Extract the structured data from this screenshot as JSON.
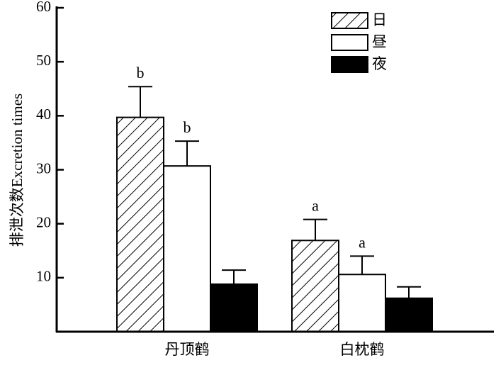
{
  "chart_data": {
    "type": "bar",
    "ylabel": "排泄次数Excretion times",
    "ylim": [
      0,
      60
    ],
    "yticks": [
      10,
      20,
      30,
      40,
      50,
      60
    ],
    "categories": [
      "丹顶鹤",
      "白枕鹤"
    ],
    "series": [
      {
        "name": "日",
        "pattern": "hatch",
        "values": [
          39.7,
          16.9
        ],
        "errors": [
          5.7,
          3.9
        ],
        "labels": [
          "b",
          "a"
        ]
      },
      {
        "name": "昼",
        "pattern": "white",
        "values": [
          30.7,
          10.6
        ],
        "errors": [
          4.6,
          3.4
        ],
        "labels": [
          "b",
          "a"
        ]
      },
      {
        "name": "夜",
        "pattern": "black",
        "values": [
          8.8,
          6.2
        ],
        "errors": [
          2.6,
          2.1
        ],
        "labels": [
          "",
          ""
        ]
      }
    ],
    "legend_position": "top-right",
    "grid": false
  }
}
